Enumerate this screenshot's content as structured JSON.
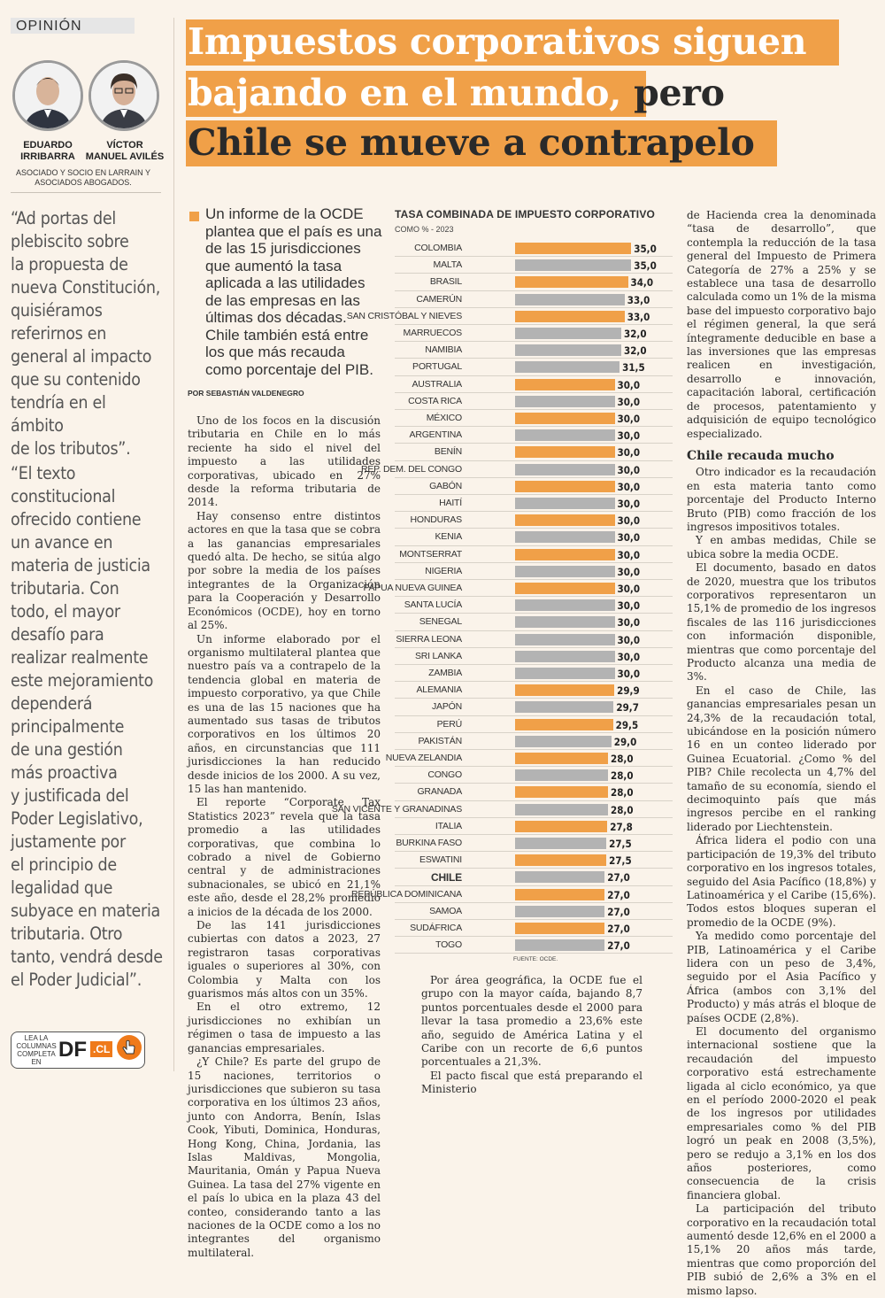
{
  "section": "OPINIÓN",
  "authors": [
    {
      "name_line1": "EDUARDO",
      "name_line2": "IRRIBARRA"
    },
    {
      "name_line1": "VÍCTOR",
      "name_line2": "MANUEL AVILÉS"
    }
  ],
  "author_credit": "ASOCIADO Y SOCIO EN LARRAIN Y ASOCIADOS ABOGADOS.",
  "pull_quotes": [
    [
      "“Ad portas del",
      "plebiscito sobre",
      "la propuesta de",
      "nueva Constitución,",
      "quisiéramos",
      "referirnos en",
      "general al impacto",
      "que su contenido",
      "tendría en el ámbito",
      "de los tributos”."
    ],
    [
      "“El texto",
      "constitucional",
      "ofrecido contiene",
      "un avance en",
      "materia de justicia",
      "tributaria. Con",
      "todo, el mayor",
      "desafío para",
      "realizar realmente",
      "este mejoramiento",
      "dependerá",
      "principalmente",
      "de una gestión",
      "más proactiva",
      "y justificada del",
      "Poder Legislativo,",
      "justamente por",
      "el principio de",
      "legalidad que",
      "subyace en materia",
      "tributaria. Otro",
      "tanto, vendrá desde",
      "el Poder Judicial”."
    ]
  ],
  "headline": {
    "line1": "Impuestos corporativos siguen",
    "line2a": "bajando en el mundo, ",
    "line2b": "pero",
    "line3": "Chile se mueve a contrapelo"
  },
  "lead": "Un informe de la OCDE plantea que el país es una de las 15 jurisdicciones que aumentó la tasa aplicada a las utilidades de las empresas en las últimas dos décadas. Chile también está entre los que más recauda como porcentaje del PIB.",
  "byline": "POR SEBASTIÁN VALDENEGRO",
  "body_col1": [
    "Uno de los focos en la discusión tributaria en Chile en lo más reciente ha sido el nivel del impuesto a las utilidades corporativas, ubicado en 27% desde la reforma tributaria de 2014.",
    "Hay consenso entre distintos actores en que la tasa que se cobra a las ganancias empresariales quedó alta. De hecho, se sitúa algo por sobre la media de los países integrantes de la Organización para la Cooperación y Desarrollo Económicos (OCDE), hoy en torno al 25%.",
    "Un informe elaborado por el organismo multilateral plantea que nuestro país va a contrapelo de la tendencia global en materia de impuesto corporativo, ya que Chile es una de las 15 naciones que ha aumentado sus tasas de tributos corporativos en los últimos 20 años, en circunstancias que 111 jurisdicciones la han reducido desde inicios de los 2000. A su vez, 15 las han mantenido.",
    "El reporte “Corporate Tax Statistics 2023” revela que la tasa promedio a las utilidades corporativas, que combina lo cobrado a nivel de Gobierno central y de administraciones subnacionales, se ubicó en 21,1% este año, desde el 28,2% promedio a inicios de la década de los 2000.",
    "De las 141 jurisdicciones cubiertas con datos a 2023, 27 registraron tasas corporativas iguales o superiores al 30%, con Colombia y Malta con los guarismos más altos con un 35%.",
    "En el otro extremo, 12 jurisdicciones no exhibían un régimen o tasa de impuesto a las ganancias empresariales.",
    "¿Y Chile? Es parte del grupo de 15 naciones, territorios o jurisdicciones que subieron su tasa corporativa en los últimos 23 años, junto con Andorra, Benín, Islas Cook, Yibuti, Dominica, Honduras, Hong Kong, China, Jordania, las Islas Maldivas, Mongolia, Mauritania, Omán y Papua Nueva Guinea. La tasa del 27% vigente en el país lo ubica en la plaza 43 del conteo, considerando tanto a las naciones de la OCDE como a los no integrantes del organismo multilateral."
  ],
  "body_col2": [
    "Por área geográfica, la OCDE fue el grupo con la mayor caída, bajando 8,7 puntos porcentuales desde el 2000 para llevar la tasa promedio a 23,6% este año, seguido de América Latina y el Caribe con un recorte de 6,6 puntos porcentuales a 21,3%.",
    "El pacto fiscal que está preparando el Ministerio"
  ],
  "body_col3_top": "de Hacienda crea la denominada “tasa de desarrollo”, que contempla la reducción de la tasa general del Impuesto de Primera Categoría de 27% a 25% y se establece una tasa de desarrollo calculada como un 1% de la misma base del impuesto corporativo bajo el régimen general, la que será íntegramente deducible en base a las inversiones que las empresas realicen en investigación, desarrollo e innovación, capacitación laboral, certificación de procesos, patentamiento y adquisición de equipo tecnológico especializado.",
  "subhead": "Chile recauda mucho",
  "body_col3": [
    "Otro indicador es la recaudación en esta materia tanto como porcentaje del Producto Interno Bruto (PIB) como fracción de los ingresos impositivos totales.",
    "Y en ambas medidas, Chile se ubica sobre la media OCDE.",
    "El documento, basado en datos de 2020, muestra que los tributos corporativos representaron un 15,1% de promedio de los ingresos fiscales de las 116 jurisdicciones con información disponible, mientras que como porcentaje del Producto alcanza una media de 3%.",
    "En el caso de Chile, las ganancias empresariales pesan un 24,3% de la recaudación total, ubicándose en la posición número 16 en un conteo liderado por Guinea Ecuatorial. ¿Como % del PIB? Chile recolecta un 4,7% del tamaño de su economía, siendo el decimoquinto país que más ingresos percibe en el ranking liderado por Liechtenstein.",
    "África lidera el podio con una participación de 19,3% del tributo corporativo en los ingresos totales, seguido del Asia Pacífico (18,8%) y Latinoamérica y el Caribe (15,6%). Todos estos bloques superan el promedio de la OCDE (9%).",
    "Ya medido como porcentaje del PIB, Latinoamérica y el Caribe lidera con un peso de 3,4%, seguido por el Asia Pacífico y África (ambos con 3,1% del Producto) y más atrás el bloque de países OCDE (2,8%).",
    "El documento del organismo internacional sostiene que la recaudación del impuesto corporativo está estrechamente ligada al ciclo económico, ya que en el período 2000-2020 el peak de los ingresos por utilidades empresariales como % del PIB logró un peak en 2008 (3,5%), pero se redujo a 3,1% en los dos años posteriores, como consecuencia de la crisis financiera global.",
    "La participación del tributo corporativo en la recaudación total aumentó desde 12,6% en el 2000 a 15,1% 20 años más tarde, mientras que como proporción del PIB subió de 2,6% a 3% en el mismo lapso."
  ],
  "colors": {
    "orange": "#f0a048",
    "gray": "#b3b3b3",
    "chile": "#f0a048"
  },
  "chart_data": {
    "type": "bar",
    "orientation": "horizontal",
    "title": "TASA COMBINADA DE IMPUESTO CORPORATIVO",
    "subtitle": "COMO % - 2023",
    "source": "FUENTE: OCDE.",
    "xlim": [
      0,
      40
    ],
    "categories": [
      "COLOMBIA",
      "MALTA",
      "BRASIL",
      "CAMERÚN",
      "SAN CRISTÓBAL Y NIEVES",
      "MARRUECOS",
      "NAMIBIA",
      "PORTUGAL",
      "AUSTRALIA",
      "COSTA RICA",
      "MÉXICO",
      "ARGENTINA",
      "BENÍN",
      "REP. DEM. DEL CONGO",
      "GABÓN",
      "HAITÍ",
      "HONDURAS",
      "KENIA",
      "MONTSERRAT",
      "NIGERIA",
      "PAPUA NUEVA GUINEA",
      "SANTA LUCÍA",
      "SENEGAL",
      "SIERRA LEONA",
      "SRI LANKA",
      "ZAMBIA",
      "ALEMANIA",
      "JAPÓN",
      "PERÚ",
      "PAKISTÁN",
      "NUEVA ZELANDIA",
      "CONGO",
      "GRANADA",
      "SAN VICENTE Y GRANADINAS",
      "ITALIA",
      "BURKINA FASO",
      "ESWATINI",
      "CHILE",
      "REPÚBLICA DOMINICANA",
      "SAMOA",
      "SUDÁFRICA",
      "TOGO"
    ],
    "values": [
      35.0,
      35.0,
      34.0,
      33.0,
      33.0,
      32.0,
      32.0,
      31.5,
      30.0,
      30.0,
      30.0,
      30.0,
      30.0,
      30.0,
      30.0,
      30.0,
      30.0,
      30.0,
      30.0,
      30.0,
      30.0,
      30.0,
      30.0,
      30.0,
      30.0,
      30.0,
      29.9,
      29.7,
      29.5,
      29.0,
      28.0,
      28.0,
      28.0,
      28.0,
      27.8,
      27.5,
      27.5,
      27.0,
      27.0,
      27.0,
      27.0,
      27.0
    ],
    "value_labels": [
      "35,0",
      "35,0",
      "34,0",
      "33,0",
      "33,0",
      "32,0",
      "32,0",
      "31,5",
      "30,0",
      "30,0",
      "30,0",
      "30,0",
      "30,0",
      "30,0",
      "30,0",
      "30,0",
      "30,0",
      "30,0",
      "30,0",
      "30,0",
      "30,0",
      "30,0",
      "30,0",
      "30,0",
      "30,0",
      "30,0",
      "29,9",
      "29,7",
      "29,5",
      "29,0",
      "28,0",
      "28,0",
      "28,0",
      "28,0",
      "27,8",
      "27,5",
      "27,5",
      "27,0",
      "27,0",
      "27,0",
      "27,0",
      "27,0"
    ],
    "bar_colors": [
      "orange",
      "gray",
      "orange",
      "gray",
      "orange",
      "gray",
      "gray",
      "gray",
      "orange",
      "gray",
      "orange",
      "gray",
      "orange",
      "gray",
      "orange",
      "gray",
      "orange",
      "gray",
      "orange",
      "gray",
      "orange",
      "gray",
      "gray",
      "gray",
      "gray",
      "gray",
      "orange",
      "gray",
      "orange",
      "gray",
      "orange",
      "gray",
      "orange",
      "gray",
      "orange",
      "gray",
      "orange",
      "gray",
      "orange",
      "gray",
      "orange",
      "gray"
    ],
    "highlight": "CHILE"
  },
  "footer": {
    "read_label": "LEA LA COLUMNAS COMPLETA EN",
    "logo": "DF",
    "logo_suffix": ".CL"
  }
}
